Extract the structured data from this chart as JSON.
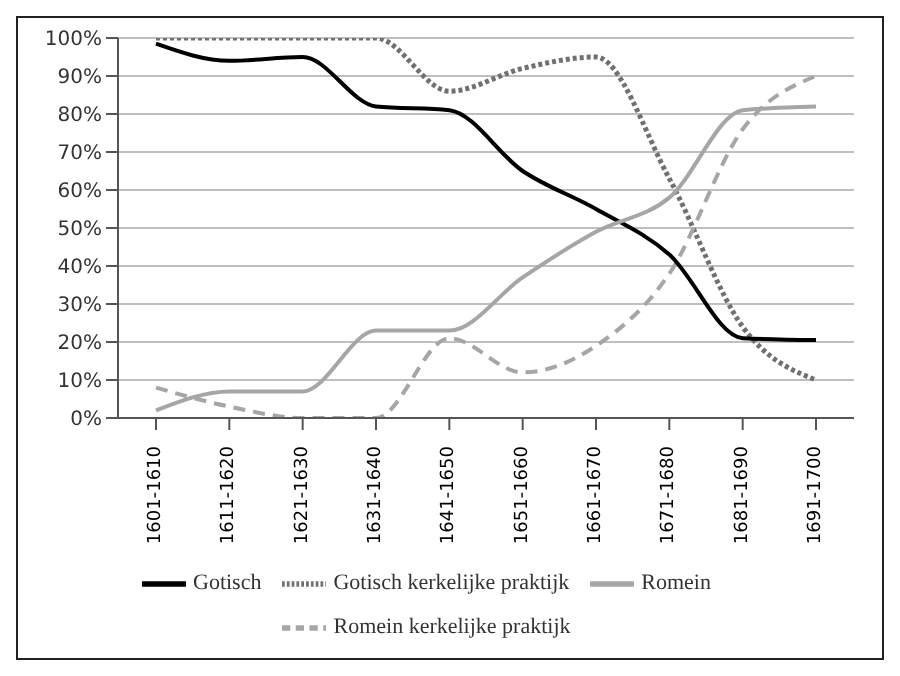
{
  "chart_data": {
    "type": "line",
    "categories": [
      "1601-1610",
      "1611-1620",
      "1621-1630",
      "1631-1640",
      "1641-1650",
      "1651-1660",
      "1661-1670",
      "1671-1680",
      "1681-1690",
      "1691-1700"
    ],
    "series": [
      {
        "name": "Gotisch kerkelijke praktijk",
        "color": "#707070",
        "line_style": "dotted",
        "values": [
          100,
          100,
          100,
          100,
          86,
          92,
          95,
          63,
          24,
          10
        ]
      },
      {
        "name": "Romein kerkelijke praktijk",
        "color": "#a6a6a6",
        "line_style": "dashed",
        "values": [
          8,
          3,
          0,
          0,
          21,
          12,
          19,
          38,
          76,
          90
        ]
      },
      {
        "name": "Gotisch",
        "color": "#000000",
        "line_style": "solid",
        "values": [
          98.5,
          94,
          95,
          82,
          81,
          65,
          55,
          43,
          21,
          20.5
        ]
      },
      {
        "name": "Romein",
        "color": "#a6a6a6",
        "line_style": "solid",
        "values": [
          2,
          7,
          7,
          23,
          23,
          37,
          49,
          58,
          81,
          82
        ]
      }
    ],
    "ylim": [
      0,
      100
    ],
    "yticks": [
      {
        "value": 0,
        "label": "0%"
      },
      {
        "value": 10,
        "label": "10%"
      },
      {
        "value": 20,
        "label": "20%"
      },
      {
        "value": 30,
        "label": "30%"
      },
      {
        "value": 40,
        "label": "40%"
      },
      {
        "value": 50,
        "label": "50%"
      },
      {
        "value": 60,
        "label": "60%"
      },
      {
        "value": 70,
        "label": "70%"
      },
      {
        "value": 80,
        "label": "80%"
      },
      {
        "value": 90,
        "label": "90%"
      },
      {
        "value": 100,
        "label": "100%"
      }
    ],
    "grid": "y",
    "legend": "bottom",
    "marker": "none"
  }
}
